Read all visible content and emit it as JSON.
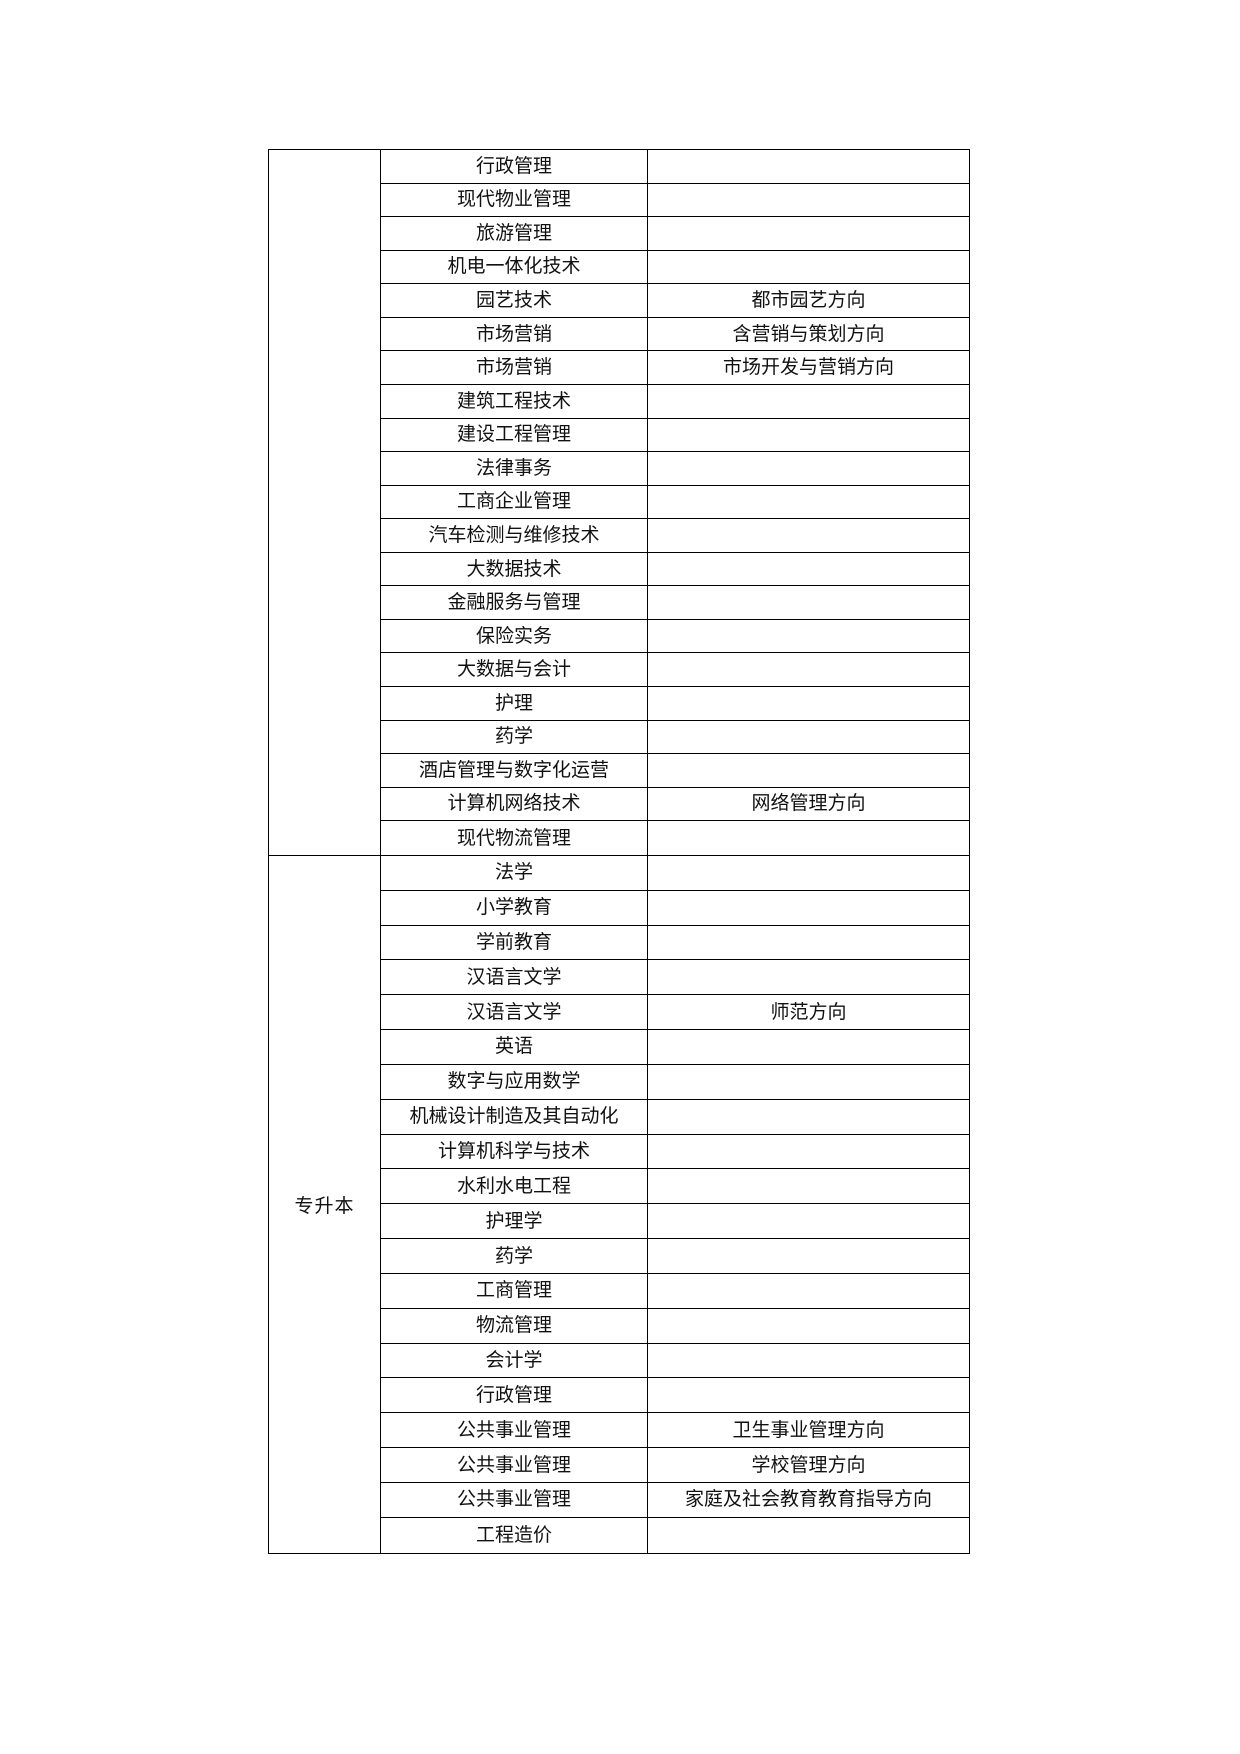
{
  "page": {
    "background_color": "#ffffff",
    "text_color": "#111111",
    "border_color": "#000000"
  },
  "table": {
    "sections": [
      {
        "level_label": "",
        "rows": [
          {
            "program": "行政管理",
            "direction": ""
          },
          {
            "program": "现代物业管理",
            "direction": ""
          },
          {
            "program": "旅游管理",
            "direction": ""
          },
          {
            "program": "机电一体化技术",
            "direction": ""
          },
          {
            "program": "园艺技术",
            "direction": "都市园艺方向"
          },
          {
            "program": "市场营销",
            "direction": "含营销与策划方向"
          },
          {
            "program": "市场营销",
            "direction": "市场开发与营销方向"
          },
          {
            "program": "建筑工程技术",
            "direction": ""
          },
          {
            "program": "建设工程管理",
            "direction": ""
          },
          {
            "program": "法律事务",
            "direction": ""
          },
          {
            "program": "工商企业管理",
            "direction": ""
          },
          {
            "program": "汽车检测与维修技术",
            "direction": ""
          },
          {
            "program": "大数据技术",
            "direction": ""
          },
          {
            "program": "金融服务与管理",
            "direction": ""
          },
          {
            "program": "保险实务",
            "direction": ""
          },
          {
            "program": "大数据与会计",
            "direction": ""
          },
          {
            "program": "护理",
            "direction": ""
          },
          {
            "program": "药学",
            "direction": ""
          },
          {
            "program": "酒店管理与数字化运营",
            "direction": ""
          },
          {
            "program": "计算机网络技术",
            "direction": "网络管理方向"
          },
          {
            "program": "现代物流管理",
            "direction": ""
          }
        ]
      },
      {
        "level_label": "专升本",
        "rows": [
          {
            "program": "法学",
            "direction": ""
          },
          {
            "program": "小学教育",
            "direction": ""
          },
          {
            "program": "学前教育",
            "direction": ""
          },
          {
            "program": "汉语言文学",
            "direction": ""
          },
          {
            "program": "汉语言文学",
            "direction": "师范方向"
          },
          {
            "program": "英语",
            "direction": ""
          },
          {
            "program": "数字与应用数学",
            "direction": ""
          },
          {
            "program": "机械设计制造及其自动化",
            "direction": ""
          },
          {
            "program": "计算机科学与技术",
            "direction": ""
          },
          {
            "program": "水利水电工程",
            "direction": ""
          },
          {
            "program": "护理学",
            "direction": ""
          },
          {
            "program": "药学",
            "direction": ""
          },
          {
            "program": "工商管理",
            "direction": ""
          },
          {
            "program": "物流管理",
            "direction": ""
          },
          {
            "program": "会计学",
            "direction": ""
          },
          {
            "program": "行政管理",
            "direction": ""
          },
          {
            "program": "公共事业管理",
            "direction": "卫生事业管理方向"
          },
          {
            "program": "公共事业管理",
            "direction": "学校管理方向"
          },
          {
            "program": "公共事业管理",
            "direction": "家庭及社会教育教育指导方向"
          },
          {
            "program": "工程造价",
            "direction": ""
          }
        ]
      }
    ]
  }
}
